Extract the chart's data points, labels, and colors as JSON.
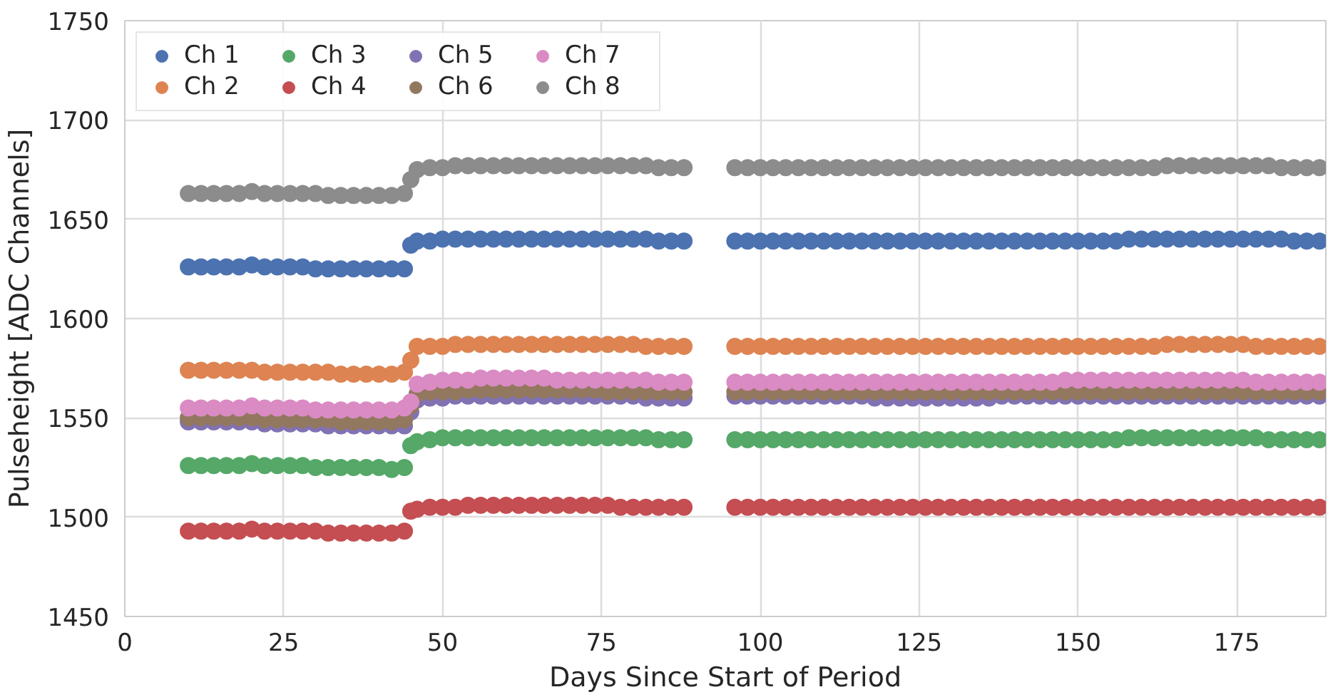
{
  "chart_data": {
    "type": "scatter",
    "xlabel": "Days Since Start of Period",
    "ylabel": "Pulseheight [ADC Channels]",
    "xlim": [
      0,
      189
    ],
    "xticks": [
      0,
      25,
      50,
      75,
      100,
      125,
      150,
      175
    ],
    "ylim": [
      1450,
      1750
    ],
    "yticks": [
      1450,
      1500,
      1550,
      1600,
      1650,
      1700,
      1750
    ],
    "grid": true,
    "legend": "top left",
    "marker": "circle",
    "x": [
      10,
      12,
      14,
      16,
      18,
      20,
      22,
      24,
      26,
      28,
      30,
      32,
      34,
      36,
      38,
      40,
      42,
      44,
      45,
      46,
      48,
      50,
      52,
      54,
      56,
      58,
      60,
      62,
      64,
      66,
      68,
      70,
      72,
      74,
      76,
      78,
      80,
      82,
      84,
      86,
      88,
      96,
      98,
      100,
      102,
      104,
      106,
      108,
      110,
      112,
      114,
      116,
      118,
      120,
      122,
      124,
      126,
      128,
      130,
      132,
      134,
      136,
      138,
      140,
      142,
      144,
      146,
      148,
      150,
      152,
      154,
      156,
      158,
      160,
      162,
      164,
      166,
      168,
      170,
      172,
      174,
      176,
      178,
      180,
      182,
      184,
      186,
      188
    ],
    "series": [
      {
        "name": "Ch 1",
        "color": "#4c72b0",
        "values": [
          1626,
          1626,
          1626,
          1626,
          1626,
          1627,
          1626,
          1626,
          1626,
          1626,
          1625,
          1625,
          1625,
          1625,
          1625,
          1625,
          1625,
          1625,
          1637,
          1639,
          1639,
          1640,
          1640,
          1640,
          1640,
          1640,
          1640,
          1640,
          1640,
          1640,
          1640,
          1640,
          1640,
          1640,
          1640,
          1640,
          1640,
          1640,
          1639,
          1639,
          1639,
          1639,
          1639,
          1639,
          1639,
          1639,
          1639,
          1639,
          1639,
          1639,
          1639,
          1639,
          1639,
          1639,
          1639,
          1639,
          1639,
          1639,
          1639,
          1639,
          1639,
          1639,
          1639,
          1639,
          1639,
          1639,
          1639,
          1639,
          1639,
          1639,
          1639,
          1639,
          1640,
          1640,
          1640,
          1640,
          1640,
          1640,
          1640,
          1640,
          1640,
          1640,
          1640,
          1640,
          1640,
          1639,
          1639,
          1639
        ]
      },
      {
        "name": "Ch 2",
        "color": "#dd8452",
        "values": [
          1574,
          1574,
          1574,
          1574,
          1574,
          1574,
          1573,
          1573,
          1573,
          1573,
          1573,
          1573,
          1572,
          1572,
          1572,
          1572,
          1572,
          1573,
          1579,
          1586,
          1586,
          1586,
          1587,
          1587,
          1587,
          1587,
          1587,
          1587,
          1587,
          1587,
          1587,
          1587,
          1587,
          1587,
          1587,
          1587,
          1587,
          1586,
          1586,
          1586,
          1586,
          1586,
          1586,
          1586,
          1586,
          1586,
          1586,
          1586,
          1586,
          1586,
          1586,
          1586,
          1586,
          1586,
          1586,
          1586,
          1586,
          1586,
          1586,
          1586,
          1586,
          1586,
          1586,
          1586,
          1586,
          1586,
          1586,
          1586,
          1586,
          1586,
          1586,
          1586,
          1586,
          1586,
          1586,
          1587,
          1587,
          1587,
          1587,
          1587,
          1587,
          1587,
          1586,
          1586,
          1586,
          1586,
          1586,
          1586
        ]
      },
      {
        "name": "Ch 3",
        "color": "#55a868",
        "values": [
          1526,
          1526,
          1526,
          1526,
          1526,
          1527,
          1526,
          1526,
          1526,
          1526,
          1525,
          1525,
          1525,
          1525,
          1525,
          1525,
          1524,
          1525,
          1536,
          1538,
          1539,
          1540,
          1540,
          1540,
          1540,
          1540,
          1540,
          1540,
          1540,
          1540,
          1540,
          1540,
          1540,
          1540,
          1540,
          1540,
          1540,
          1540,
          1539,
          1539,
          1539,
          1539,
          1539,
          1539,
          1539,
          1539,
          1539,
          1539,
          1539,
          1539,
          1539,
          1539,
          1539,
          1539,
          1539,
          1539,
          1539,
          1539,
          1539,
          1539,
          1539,
          1539,
          1539,
          1539,
          1539,
          1539,
          1539,
          1539,
          1539,
          1539,
          1539,
          1539,
          1540,
          1540,
          1540,
          1540,
          1540,
          1540,
          1540,
          1540,
          1540,
          1540,
          1540,
          1539,
          1539,
          1539,
          1539,
          1539
        ]
      },
      {
        "name": "Ch 4",
        "color": "#c44e52",
        "values": [
          1493,
          1493,
          1493,
          1493,
          1493,
          1494,
          1493,
          1493,
          1493,
          1493,
          1493,
          1492,
          1492,
          1492,
          1492,
          1492,
          1492,
          1493,
          1503,
          1504,
          1505,
          1505,
          1505,
          1506,
          1506,
          1506,
          1506,
          1506,
          1506,
          1506,
          1506,
          1506,
          1506,
          1506,
          1506,
          1505,
          1505,
          1505,
          1505,
          1505,
          1505,
          1505,
          1505,
          1505,
          1505,
          1505,
          1505,
          1505,
          1505,
          1505,
          1505,
          1505,
          1505,
          1505,
          1505,
          1505,
          1505,
          1505,
          1505,
          1505,
          1505,
          1505,
          1505,
          1505,
          1505,
          1505,
          1505,
          1505,
          1505,
          1505,
          1505,
          1505,
          1505,
          1505,
          1505,
          1505,
          1505,
          1505,
          1505,
          1505,
          1505,
          1505,
          1505,
          1505,
          1505,
          1505,
          1505,
          1505
        ]
      },
      {
        "name": "Ch 5",
        "color": "#8172b3",
        "values": [
          1548,
          1548,
          1548,
          1548,
          1548,
          1548,
          1547,
          1547,
          1547,
          1547,
          1547,
          1546,
          1546,
          1546,
          1546,
          1546,
          1546,
          1546,
          1553,
          1559,
          1560,
          1560,
          1561,
          1561,
          1561,
          1561,
          1561,
          1561,
          1561,
          1561,
          1561,
          1561,
          1561,
          1561,
          1561,
          1561,
          1561,
          1560,
          1560,
          1560,
          1560,
          1561,
          1561,
          1561,
          1561,
          1561,
          1561,
          1561,
          1561,
          1561,
          1561,
          1561,
          1560,
          1560,
          1560,
          1560,
          1560,
          1560,
          1560,
          1560,
          1560,
          1560,
          1561,
          1561,
          1561,
          1561,
          1561,
          1561,
          1561,
          1561,
          1561,
          1561,
          1561,
          1561,
          1561,
          1561,
          1561,
          1561,
          1561,
          1561,
          1561,
          1561,
          1561,
          1561,
          1561,
          1561,
          1561,
          1561
        ]
      },
      {
        "name": "Ch 6",
        "color": "#937860",
        "values": [
          1550,
          1550,
          1550,
          1550,
          1550,
          1550,
          1549,
          1549,
          1549,
          1549,
          1549,
          1549,
          1548,
          1548,
          1548,
          1548,
          1548,
          1549,
          1556,
          1562,
          1563,
          1563,
          1563,
          1564,
          1564,
          1564,
          1564,
          1564,
          1564,
          1564,
          1564,
          1564,
          1564,
          1564,
          1563,
          1563,
          1563,
          1563,
          1563,
          1563,
          1563,
          1563,
          1563,
          1563,
          1563,
          1563,
          1563,
          1563,
          1563,
          1563,
          1563,
          1563,
          1563,
          1563,
          1563,
          1563,
          1563,
          1563,
          1563,
          1563,
          1563,
          1563,
          1563,
          1563,
          1563,
          1563,
          1563,
          1563,
          1563,
          1563,
          1563,
          1563,
          1563,
          1563,
          1563,
          1563,
          1563,
          1563,
          1563,
          1563,
          1563,
          1563,
          1563,
          1563,
          1563,
          1563,
          1563,
          1563
        ]
      },
      {
        "name": "Ch 7",
        "color": "#da8bc3",
        "values": [
          1555,
          1555,
          1555,
          1555,
          1555,
          1556,
          1555,
          1555,
          1555,
          1555,
          1554,
          1554,
          1554,
          1554,
          1554,
          1554,
          1554,
          1555,
          1558,
          1567,
          1568,
          1569,
          1569,
          1569,
          1570,
          1570,
          1570,
          1570,
          1570,
          1570,
          1569,
          1569,
          1569,
          1569,
          1569,
          1569,
          1569,
          1569,
          1568,
          1568,
          1568,
          1568,
          1568,
          1568,
          1568,
          1568,
          1568,
          1568,
          1568,
          1568,
          1568,
          1568,
          1568,
          1568,
          1568,
          1568,
          1568,
          1568,
          1568,
          1568,
          1568,
          1568,
          1568,
          1568,
          1568,
          1568,
          1568,
          1569,
          1569,
          1569,
          1569,
          1569,
          1569,
          1569,
          1569,
          1569,
          1569,
          1569,
          1569,
          1569,
          1569,
          1569,
          1568,
          1568,
          1568,
          1568,
          1568,
          1568
        ]
      },
      {
        "name": "Ch 8",
        "color": "#8c8c8c",
        "values": [
          1663,
          1663,
          1663,
          1663,
          1663,
          1664,
          1663,
          1663,
          1663,
          1663,
          1663,
          1662,
          1662,
          1662,
          1662,
          1662,
          1662,
          1663,
          1670,
          1675,
          1676,
          1676,
          1677,
          1677,
          1677,
          1677,
          1677,
          1677,
          1677,
          1677,
          1677,
          1677,
          1677,
          1677,
          1677,
          1677,
          1677,
          1677,
          1676,
          1676,
          1676,
          1676,
          1676,
          1676,
          1676,
          1676,
          1676,
          1676,
          1676,
          1676,
          1676,
          1676,
          1676,
          1676,
          1676,
          1676,
          1676,
          1676,
          1676,
          1676,
          1676,
          1676,
          1676,
          1676,
          1676,
          1676,
          1676,
          1676,
          1676,
          1676,
          1676,
          1676,
          1676,
          1676,
          1676,
          1677,
          1677,
          1677,
          1677,
          1677,
          1677,
          1677,
          1677,
          1677,
          1676,
          1676,
          1676,
          1676
        ]
      }
    ]
  }
}
